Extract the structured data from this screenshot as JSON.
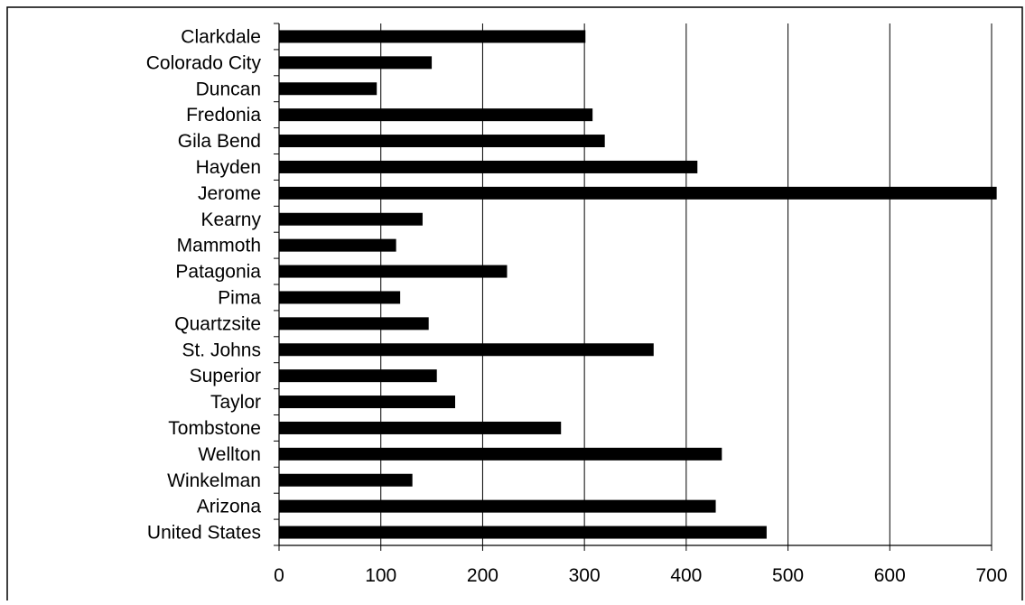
{
  "chart_data": {
    "type": "bar",
    "orientation": "horizontal",
    "categories": [
      "Clarkdale",
      "Colorado City",
      "Duncan",
      "Fredonia",
      "Gila Bend",
      "Hayden",
      "Jerome",
      "Kearny",
      "Mammoth",
      "Patagonia",
      "Pima",
      "Quartzsite",
      "St. Johns",
      "Superior",
      "Taylor",
      "Tombstone",
      "Wellton",
      "Winkelman",
      "Arizona",
      "United States"
    ],
    "values": [
      301,
      150,
      96,
      308,
      320,
      411,
      705,
      141,
      115,
      224,
      119,
      147,
      368,
      155,
      173,
      277,
      435,
      131,
      429,
      479
    ],
    "xlim": [
      0,
      700
    ],
    "xticks": [
      0,
      100,
      200,
      300,
      400,
      500,
      600,
      700
    ],
    "grid": "vertical",
    "legend": "none",
    "title": "",
    "xlabel": "",
    "ylabel": "",
    "colors": {
      "bar": "#000000",
      "grid": "#000000",
      "frame": "#000000",
      "background": "#ffffff"
    }
  }
}
